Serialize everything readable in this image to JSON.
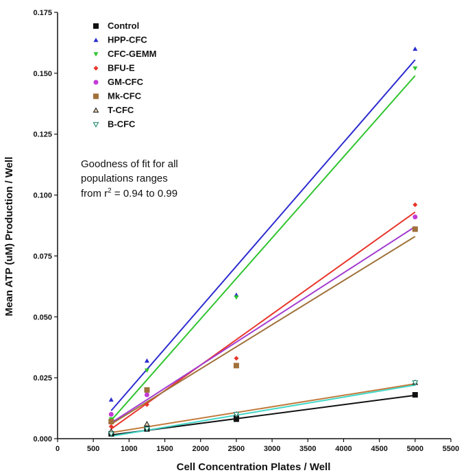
{
  "chart_data": {
    "type": "scatter",
    "title": "",
    "xlabel": "Cell Concentration Plates / Well",
    "ylabel": "Mean ATP (uM) Production / Well",
    "xlim": [
      0,
      5500
    ],
    "ylim": [
      0,
      0.175
    ],
    "x_ticks": [
      "0",
      "500",
      "1000",
      "1500",
      "2000",
      "2500",
      "3000",
      "3500",
      "4000",
      "4500",
      "5000",
      "5500"
    ],
    "y_ticks": [
      "0.000",
      "0.025",
      "0.050",
      "0.075",
      "0.100",
      "0.125",
      "0.150",
      "0.175"
    ],
    "grid": false,
    "legend_position": "top-left",
    "annotation": {
      "line1": "Goodness of fit for all",
      "line2": "populations ranges",
      "line3_prefix": "from r",
      "line3_sup": "2",
      "line3_suffix": " = 0.94 to 0.99"
    },
    "series": [
      {
        "name": "Control",
        "marker": "square",
        "color": "#111111",
        "fit_color": "#111111",
        "x": [
          750,
          1250,
          2500,
          5000
        ],
        "y": [
          0.002,
          0.004,
          0.008,
          0.018
        ],
        "fit": [
          0.0015,
          0.0178
        ]
      },
      {
        "name": "HPP-CFC",
        "marker": "triangle-up",
        "color": "#2b2bd0",
        "fit_color": "#2b2bd0",
        "x": [
          750,
          1250,
          2500,
          5000
        ],
        "y": [
          0.016,
          0.032,
          0.059,
          0.16
        ],
        "fit": [
          0.0115,
          0.1555
        ]
      },
      {
        "name": "CFC-GEMM",
        "marker": "triangle-down",
        "color": "#2ec42e",
        "fit_color": "#2ec42e",
        "x": [
          750,
          1250,
          2500,
          5000
        ],
        "y": [
          0.008,
          0.028,
          0.058,
          0.152
        ],
        "fit": [
          0.0075,
          0.149
        ]
      },
      {
        "name": "BFU-E",
        "marker": "diamond",
        "color": "#e8352a",
        "fit_color": "#e8352a",
        "x": [
          750,
          1250,
          2500,
          5000
        ],
        "y": [
          0.005,
          0.014,
          0.033,
          0.096
        ],
        "fit": [
          0.004,
          0.093
        ]
      },
      {
        "name": "GM-CFC",
        "marker": "circle",
        "color": "#c43ad6",
        "fit_color": "#a33ccf",
        "x": [
          750,
          1250,
          2500,
          5000
        ],
        "y": [
          0.01,
          0.018,
          0.03,
          0.091
        ],
        "fit": [
          0.0065,
          0.087
        ]
      },
      {
        "name": "Mk-CFC",
        "marker": "square",
        "color": "#a0713a",
        "fit_color": "#a0713a",
        "x": [
          750,
          1250,
          2500,
          5000
        ],
        "y": [
          0.007,
          0.02,
          0.03,
          0.086
        ],
        "fit": [
          0.006,
          0.083
        ]
      },
      {
        "name": "T-CFC",
        "marker": "triangle-up-open",
        "color": "#a0713a",
        "fit_color": "#c07a3c",
        "x": [
          750,
          1250,
          2500,
          5000
        ],
        "y": [
          0.003,
          0.006,
          0.01,
          0.023
        ],
        "fit": [
          0.0025,
          0.0225
        ]
      },
      {
        "name": "B-CFC",
        "marker": "triangle-down-open",
        "color": "#2a8f7a",
        "fit_color": "#3fd6c7",
        "x": [
          750,
          1250,
          2500,
          5000
        ],
        "y": [
          0.002,
          0.004,
          0.01,
          0.023
        ],
        "fit": [
          0.001,
          0.022
        ]
      }
    ]
  }
}
